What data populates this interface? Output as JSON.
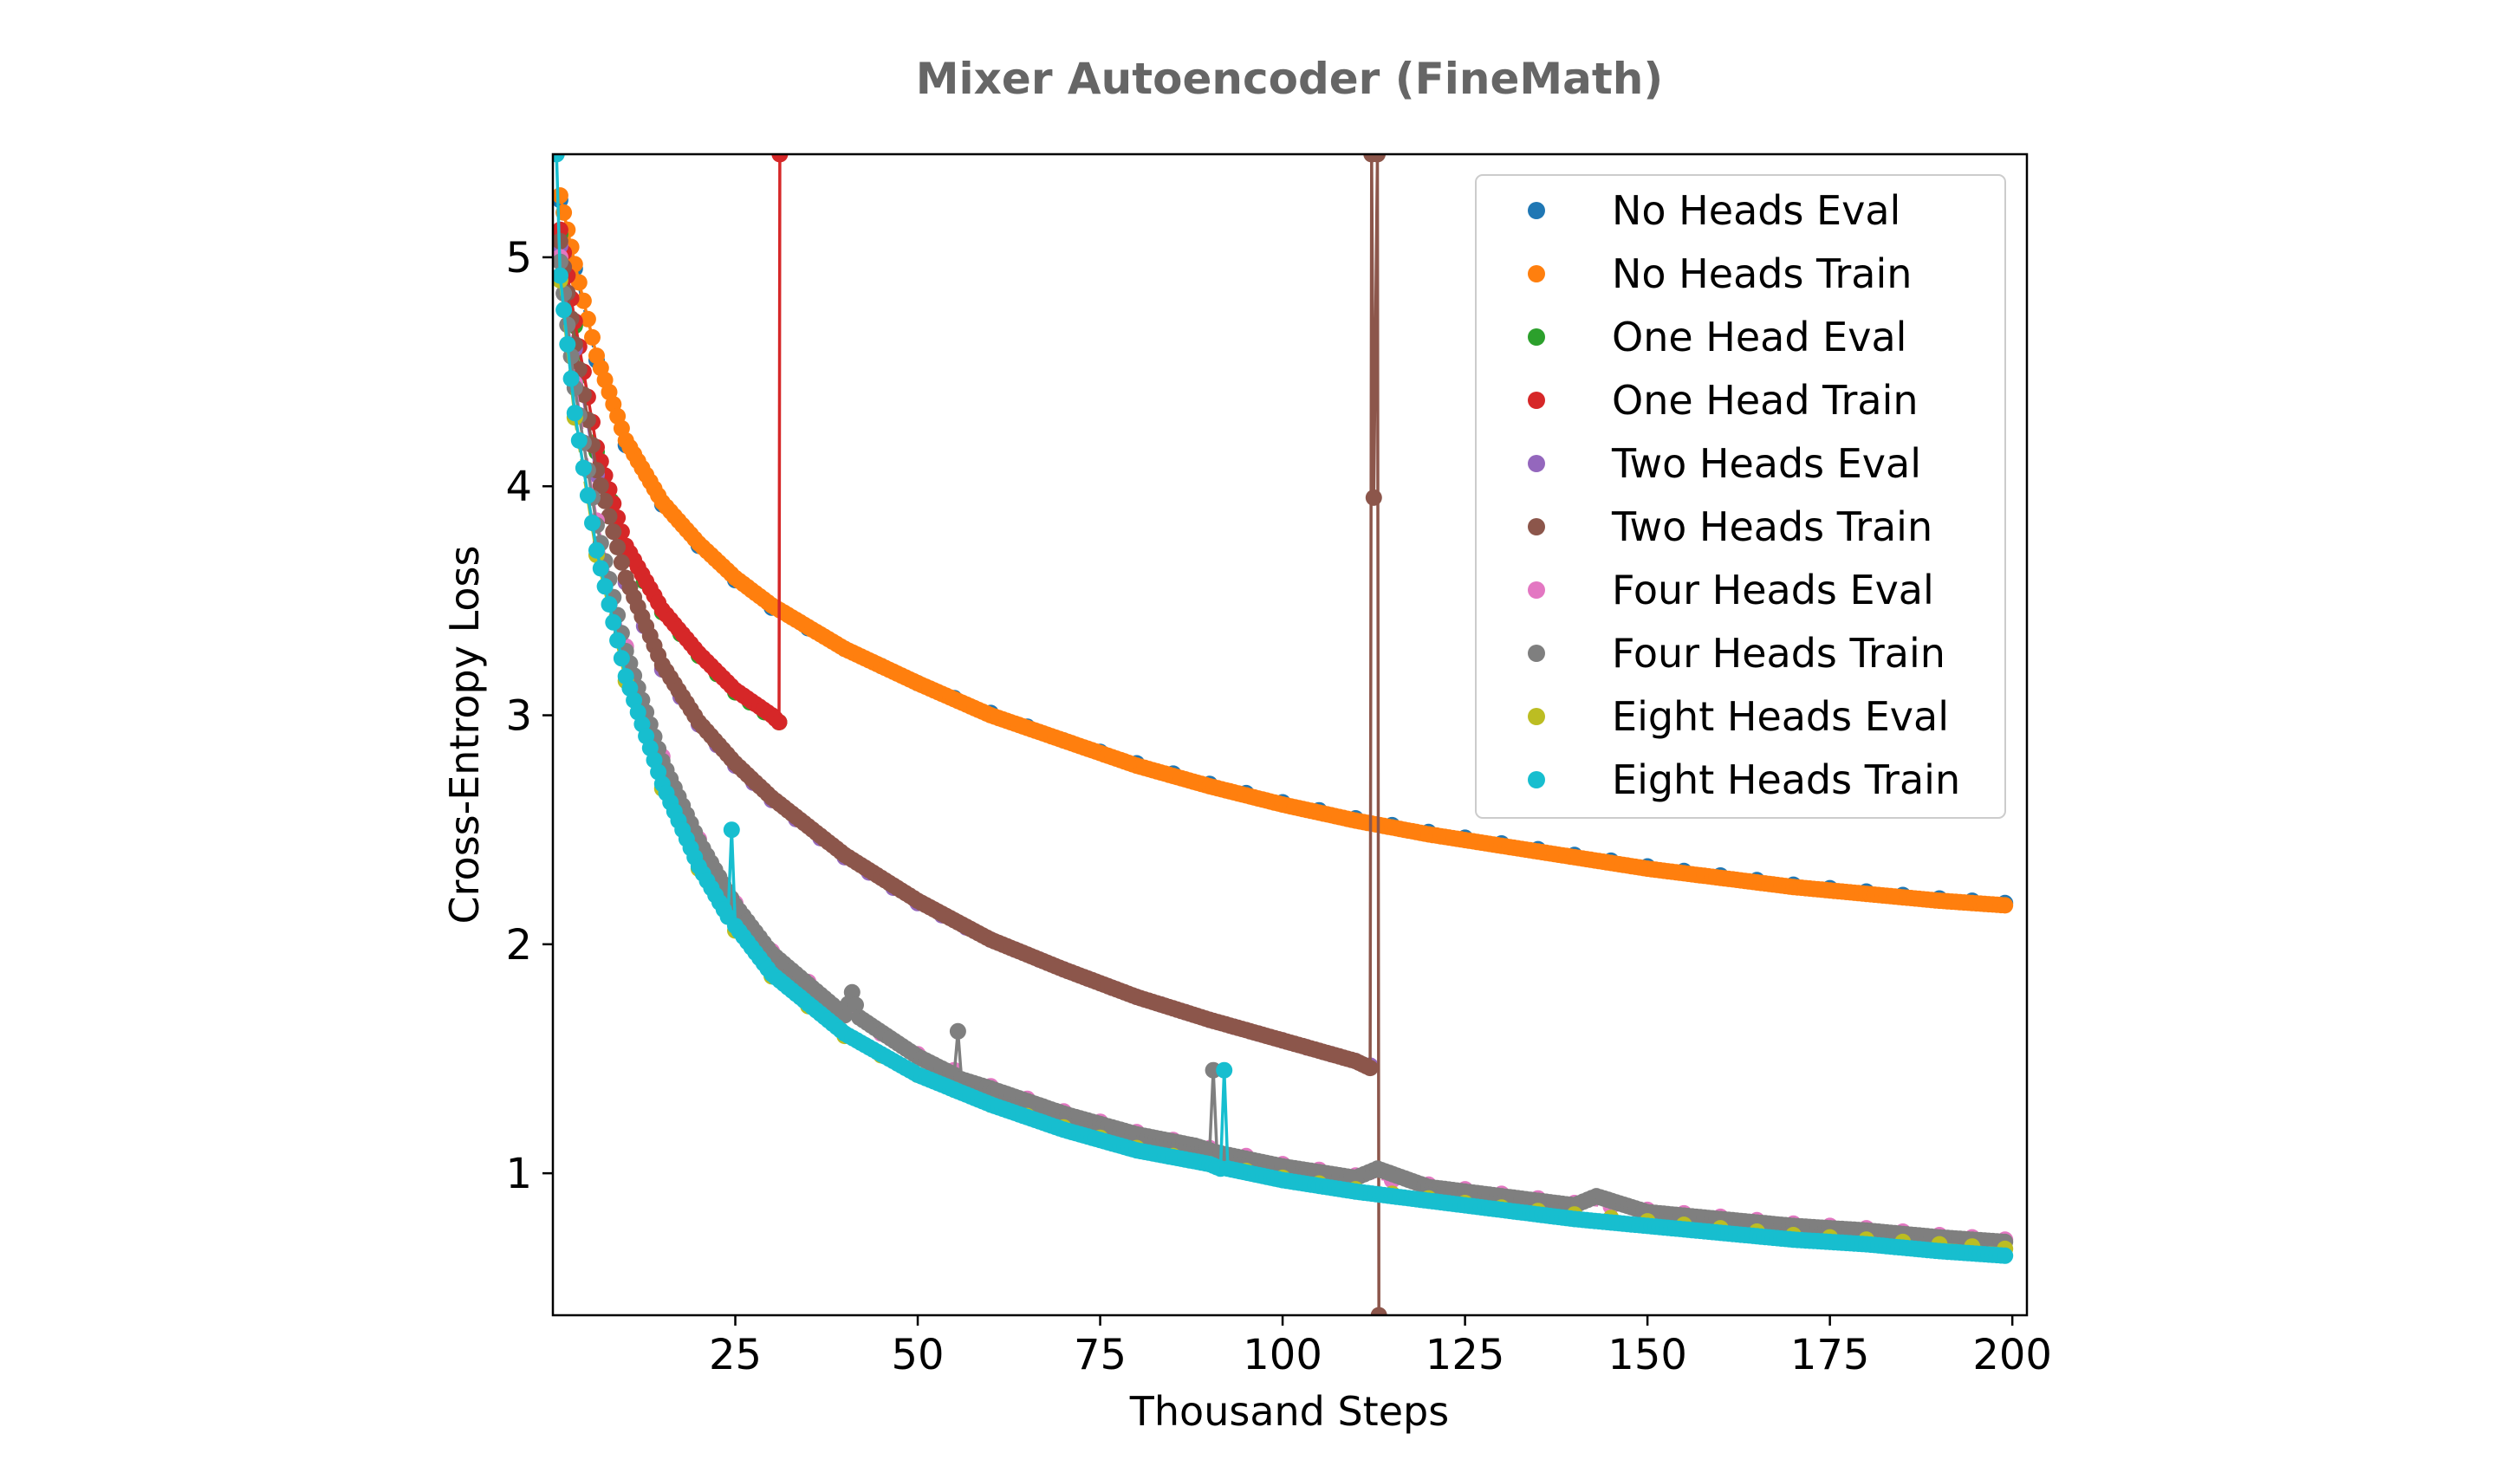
{
  "chart_data": {
    "type": "line",
    "title": "Mixer Autoencoder (FineMath)",
    "xlabel": "Thousand Steps",
    "ylabel": "Cross-Entropy Loss",
    "xlim": [
      0,
      202
    ],
    "ylim": [
      0.38,
      5.45
    ],
    "xticks": [
      25,
      50,
      75,
      100,
      125,
      150,
      175,
      200
    ],
    "yticks": [
      1,
      2,
      3,
      4,
      5
    ],
    "grid": false,
    "legend_position": "top-right",
    "series": [
      {
        "name": "No Heads Eval",
        "color": "#1f77b4",
        "marker_every": 8,
        "x": [
          1,
          3,
          6,
          10,
          15,
          20,
          25,
          30,
          40,
          50,
          60,
          70,
          80,
          90,
          100,
          110,
          120,
          130,
          140,
          150,
          160,
          170,
          180,
          190,
          199
        ],
        "y": [
          5.25,
          4.95,
          4.55,
          4.18,
          3.92,
          3.74,
          3.59,
          3.47,
          3.29,
          3.14,
          3.01,
          2.89,
          2.79,
          2.7,
          2.62,
          2.55,
          2.49,
          2.44,
          2.39,
          2.34,
          2.3,
          2.26,
          2.23,
          2.2,
          2.18
        ]
      },
      {
        "name": "No Heads Train",
        "color": "#ff7f0e",
        "marker_every": 1,
        "x": [
          1,
          3,
          6,
          10,
          15,
          20,
          25,
          30,
          40,
          50,
          60,
          70,
          80,
          90,
          100,
          110,
          120,
          130,
          140,
          150,
          160,
          170,
          180,
          190,
          199
        ],
        "y": [
          5.27,
          4.97,
          4.57,
          4.2,
          3.93,
          3.75,
          3.6,
          3.48,
          3.29,
          3.14,
          3.0,
          2.89,
          2.78,
          2.69,
          2.61,
          2.54,
          2.48,
          2.43,
          2.38,
          2.33,
          2.29,
          2.25,
          2.22,
          2.19,
          2.17
        ]
      },
      {
        "name": "One Head Eval",
        "color": "#2ca02c",
        "marker_every": 4,
        "x": [
          1,
          3,
          6,
          10,
          15,
          20,
          25,
          31
        ],
        "y": [
          5.1,
          4.7,
          4.15,
          3.72,
          3.45,
          3.26,
          3.1,
          2.97
        ]
      },
      {
        "name": "One Head Train",
        "color": "#d62728",
        "marker_every": 1,
        "x": [
          1,
          3,
          6,
          10,
          15,
          20,
          25,
          30,
          31,
          31.1
        ],
        "y": [
          5.12,
          4.72,
          4.17,
          3.74,
          3.46,
          3.27,
          3.11,
          3.0,
          2.97,
          5.45
        ]
      },
      {
        "name": "Two Heads Eval",
        "color": "#9467bd",
        "marker_every": 6,
        "x": [
          1,
          3,
          6,
          10,
          15,
          20,
          25,
          30,
          40,
          50,
          60,
          70,
          80,
          90,
          100,
          110,
          112
        ],
        "y": [
          5.05,
          4.6,
          4.05,
          3.58,
          3.2,
          2.96,
          2.78,
          2.63,
          2.38,
          2.18,
          2.02,
          1.89,
          1.77,
          1.67,
          1.58,
          1.49,
          1.47
        ]
      },
      {
        "name": "Two Heads Train",
        "color": "#8c564b",
        "marker_every": 1,
        "x": [
          1,
          3,
          6,
          10,
          15,
          20,
          25,
          30,
          40,
          50,
          60,
          70,
          80,
          90,
          100,
          110,
          112,
          112.2,
          112.5,
          113,
          113.2
        ],
        "y": [
          5.07,
          4.62,
          4.07,
          3.6,
          3.22,
          2.97,
          2.79,
          2.64,
          2.39,
          2.19,
          2.02,
          1.89,
          1.77,
          1.67,
          1.58,
          1.49,
          1.46,
          5.45,
          3.95,
          5.45,
          0.38
        ]
      },
      {
        "name": "Four Heads Eval",
        "color": "#e377c2",
        "marker_every": 10,
        "x": [
          1,
          3,
          6,
          10,
          15,
          20,
          25,
          30,
          40,
          50,
          60,
          70,
          80,
          90,
          100,
          110,
          120,
          130,
          140,
          150,
          160,
          170,
          180,
          190,
          199
        ],
        "y": [
          5.0,
          4.45,
          3.85,
          3.3,
          2.82,
          2.46,
          2.18,
          1.97,
          1.7,
          1.52,
          1.38,
          1.27,
          1.18,
          1.11,
          1.04,
          0.99,
          0.95,
          0.91,
          0.87,
          0.84,
          0.81,
          0.78,
          0.76,
          0.73,
          0.71
        ]
      },
      {
        "name": "Four Heads Train",
        "color": "#7f7f7f",
        "marker_every": 1,
        "x": [
          1,
          3,
          6,
          10,
          15,
          20,
          25,
          30,
          40,
          41,
          42,
          50,
          55,
          55.5,
          56,
          60,
          70,
          80,
          88,
          90,
          90.5,
          91,
          100,
          110,
          113,
          120,
          130,
          140,
          143,
          150,
          160,
          170,
          180,
          190,
          199
        ],
        "y": [
          4.98,
          4.43,
          3.83,
          3.28,
          2.8,
          2.45,
          2.17,
          1.96,
          1.69,
          1.79,
          1.68,
          1.51,
          1.43,
          1.62,
          1.41,
          1.37,
          1.26,
          1.17,
          1.12,
          1.1,
          1.45,
          1.09,
          1.03,
          0.98,
          1.02,
          0.94,
          0.9,
          0.86,
          0.9,
          0.83,
          0.8,
          0.77,
          0.75,
          0.72,
          0.7
        ]
      },
      {
        "name": "Eight Heads Eval",
        "color": "#bcbd22",
        "marker_every": 10,
        "x": [
          1,
          3,
          6,
          10,
          15,
          20,
          25,
          30,
          40,
          50,
          60,
          70,
          80,
          90,
          100,
          110,
          120,
          130,
          140,
          150,
          160,
          170,
          180,
          190,
          199
        ],
        "y": [
          4.9,
          4.3,
          3.7,
          3.15,
          2.68,
          2.33,
          2.06,
          1.86,
          1.6,
          1.43,
          1.3,
          1.2,
          1.11,
          1.04,
          0.98,
          0.93,
          0.89,
          0.85,
          0.82,
          0.79,
          0.76,
          0.73,
          0.71,
          0.69,
          0.67
        ]
      },
      {
        "name": "Eight Heads Train",
        "color": "#17becf",
        "marker_every": 1,
        "x": [
          0.5,
          1,
          3,
          6,
          10,
          15,
          20,
          24,
          24.5,
          25,
          30,
          40,
          50,
          60,
          70,
          80,
          90,
          91.5,
          92,
          92.5,
          100,
          110,
          120,
          130,
          140,
          150,
          160,
          170,
          180,
          190,
          199
        ],
        "y": [
          5.45,
          4.92,
          4.32,
          3.72,
          3.17,
          2.7,
          2.34,
          2.12,
          2.5,
          2.08,
          1.87,
          1.61,
          1.43,
          1.3,
          1.19,
          1.1,
          1.04,
          1.02,
          1.45,
          1.02,
          0.97,
          0.92,
          0.88,
          0.84,
          0.8,
          0.77,
          0.74,
          0.71,
          0.69,
          0.66,
          0.64
        ]
      }
    ]
  }
}
